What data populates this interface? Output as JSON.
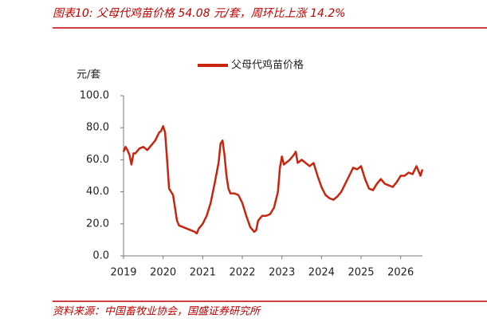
{
  "chart_data": {
    "type": "line",
    "title": "图表10:  父母代鸡苗价格 54.08 元/套，周环比上涨 14.2%",
    "source": "资料来源：中国畜牧业协会，国盛证券研究所",
    "y_label": "元/套",
    "x": [
      2019.0,
      2019.05,
      2019.1,
      2019.15,
      2019.2,
      2019.25,
      2019.3,
      2019.4,
      2019.5,
      2019.6,
      2019.7,
      2019.8,
      2019.9,
      2019.95,
      2020.0,
      2020.05,
      2020.1,
      2020.15,
      2020.2,
      2020.25,
      2020.3,
      2020.35,
      2020.4,
      2020.5,
      2020.6,
      2020.7,
      2020.8,
      2020.85,
      2020.9,
      2021.0,
      2021.1,
      2021.2,
      2021.3,
      2021.4,
      2021.45,
      2021.5,
      2021.55,
      2021.6,
      2021.65,
      2021.7,
      2021.8,
      2021.9,
      2022.0,
      2022.1,
      2022.2,
      2022.3,
      2022.35,
      2022.4,
      2022.5,
      2022.6,
      2022.7,
      2022.8,
      2022.9,
      2022.95,
      2023.0,
      2023.05,
      2023.1,
      2023.2,
      2023.3,
      2023.35,
      2023.4,
      2023.5,
      2023.6,
      2023.7,
      2023.8,
      2023.9,
      2024.0,
      2024.1,
      2024.2,
      2024.3,
      2024.4,
      2024.5,
      2024.6,
      2024.7,
      2024.8,
      2024.9,
      2025.0,
      2025.05,
      2025.1,
      2025.2,
      2025.3,
      2025.4,
      2025.5,
      2025.6,
      2025.7,
      2025.8,
      2025.9,
      2026.0,
      2026.1,
      2026.2,
      2026.3,
      2026.4,
      2026.5,
      2026.55
    ],
    "series": [
      {
        "name": "父母代鸡苗价格",
        "color": "#c8250f",
        "values": [
          65,
          68,
          66,
          63,
          57,
          64,
          64,
          67,
          68,
          66,
          69,
          72,
          77,
          78,
          81,
          77,
          60,
          42,
          40,
          38,
          30,
          22,
          19,
          18,
          17,
          16,
          15,
          14,
          17,
          20,
          25,
          33,
          45,
          58,
          70,
          72,
          63,
          50,
          42,
          39,
          39,
          38,
          33,
          25,
          18,
          15,
          16,
          22,
          25,
          25,
          26,
          30,
          40,
          55,
          62,
          57,
          58,
          60,
          63,
          65,
          58,
          60,
          58,
          56,
          58,
          50,
          43,
          38,
          36,
          35,
          37,
          40,
          45,
          50,
          55,
          54,
          56,
          52,
          48,
          42,
          41,
          45,
          48,
          45,
          44,
          43,
          46,
          50,
          50,
          52,
          51,
          56,
          50,
          54
        ]
      }
    ],
    "xlim": [
      2019,
      2026.55
    ],
    "xticks": [
      2019,
      2020,
      2021,
      2022,
      2023,
      2024,
      2025,
      2026
    ],
    "ylim": [
      0,
      100
    ],
    "yticks": [
      {
        "value": 0,
        "label": "0.0"
      },
      {
        "value": 20,
        "label": "20.0"
      },
      {
        "value": 40,
        "label": "40.0"
      },
      {
        "value": 60,
        "label": "60.0"
      },
      {
        "value": 80,
        "label": "80.0"
      },
      {
        "value": 100,
        "label": "100.0"
      }
    ],
    "legend": "top"
  }
}
